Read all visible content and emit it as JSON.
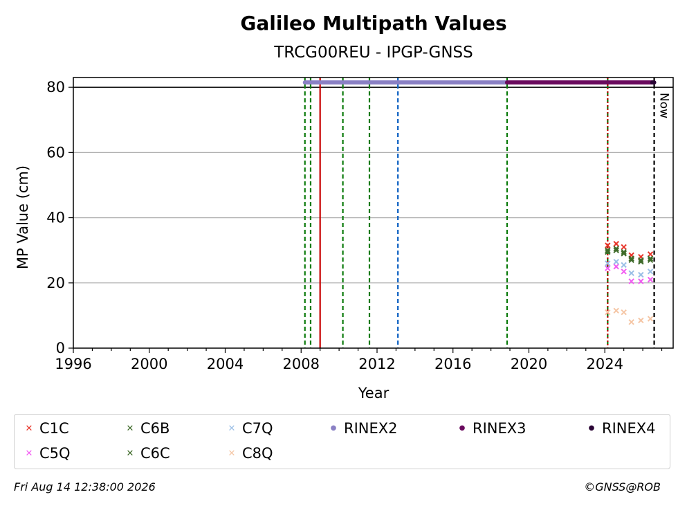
{
  "chart_data": {
    "type": "scatter",
    "title": "Galileo Multipath Values",
    "subtitle": "TRCG00REU - IPGP-GNSS",
    "xlabel": "Year",
    "ylabel": "MP Value (cm)",
    "xlim": [
      1996,
      2027.6
    ],
    "ylim": [
      0,
      83
    ],
    "x_ticks": [
      1996,
      2000,
      2004,
      2008,
      2012,
      2016,
      2020,
      2024
    ],
    "x_tick_labels": [
      "1996",
      "2000",
      "2004",
      "2008",
      "2012",
      "2016",
      "2020",
      "2024"
    ],
    "y_ticks": [
      0,
      20,
      40,
      60,
      80
    ],
    "y_tick_labels": [
      "0",
      "20",
      "40",
      "60",
      "80"
    ],
    "grid": "horizontal",
    "series": [
      {
        "name": "C1C",
        "marker": "x",
        "color": "#e8352a",
        "points": [
          [
            2024.15,
            31.5
          ],
          [
            2024.6,
            32.0
          ],
          [
            2025.0,
            31.0
          ],
          [
            2025.4,
            28.5
          ],
          [
            2025.9,
            28.0
          ],
          [
            2026.4,
            28.8
          ]
        ]
      },
      {
        "name": "C5Q",
        "marker": "x",
        "color": "#f25cf2",
        "points": [
          [
            2024.15,
            24.5
          ],
          [
            2024.6,
            25.0
          ],
          [
            2025.0,
            23.5
          ],
          [
            2025.4,
            20.5
          ],
          [
            2025.9,
            20.5
          ],
          [
            2026.4,
            21.0
          ]
        ]
      },
      {
        "name": "C6B",
        "marker": "x",
        "color": "#3f6b2a",
        "points": [
          [
            2024.15,
            30.0
          ],
          [
            2024.6,
            30.5
          ],
          [
            2025.0,
            29.5
          ],
          [
            2025.4,
            27.5
          ],
          [
            2025.9,
            27.0
          ],
          [
            2026.4,
            27.5
          ]
        ]
      },
      {
        "name": "C6C",
        "marker": "x",
        "color": "#3f6b2a",
        "points": [
          [
            2024.15,
            29.5
          ],
          [
            2024.6,
            30.0
          ],
          [
            2025.0,
            29.0
          ],
          [
            2025.4,
            27.0
          ],
          [
            2025.9,
            26.5
          ],
          [
            2026.4,
            27.0
          ]
        ]
      },
      {
        "name": "C7Q",
        "marker": "x",
        "color": "#9bbfe6",
        "points": [
          [
            2024.15,
            26.0
          ],
          [
            2024.6,
            26.5
          ],
          [
            2025.0,
            25.5
          ],
          [
            2025.4,
            23.0
          ],
          [
            2025.9,
            22.5
          ],
          [
            2026.4,
            23.5
          ]
        ]
      },
      {
        "name": "C8Q",
        "marker": "x",
        "color": "#f5c6a5",
        "points": [
          [
            2024.15,
            11.0
          ],
          [
            2024.6,
            11.5
          ],
          [
            2025.0,
            11.0
          ],
          [
            2025.4,
            8.0
          ],
          [
            2025.9,
            8.5
          ],
          [
            2026.4,
            9.0
          ]
        ]
      }
    ],
    "rinex_bars": [
      {
        "name": "RINEX2",
        "color": "#8a80c4",
        "start": 2008.2,
        "end": 2018.85,
        "y": 81.5
      },
      {
        "name": "RINEX3",
        "color": "#6a0a5e",
        "start": 2018.85,
        "end": 2026.5,
        "y": 81.5
      },
      {
        "name": "RINEX4",
        "color": "#2a0535",
        "start": 2026.5,
        "end": 2026.6,
        "y": 81.5
      }
    ],
    "hline": 80,
    "vlines": [
      {
        "x": 2008.2,
        "color": "#0a7a0a",
        "style": "dashed"
      },
      {
        "x": 2008.5,
        "color": "#0a7a0a",
        "style": "dashed"
      },
      {
        "x": 2009.0,
        "color": "#c80000",
        "style": "solid"
      },
      {
        "x": 2010.2,
        "color": "#0a7a0a",
        "style": "dashed"
      },
      {
        "x": 2011.6,
        "color": "#0a7a0a",
        "style": "dashed"
      },
      {
        "x": 2013.1,
        "color": "#0b5fc2",
        "style": "dashed"
      },
      {
        "x": 2018.85,
        "color": "#0a7a0a",
        "style": "dashed"
      },
      {
        "x": 2024.15,
        "color": "#0a7a0a",
        "style": "dashed"
      },
      {
        "x": 2024.15,
        "color": "#c80000",
        "style": "dotted"
      },
      {
        "x": 2026.6,
        "color": "#000000",
        "style": "dashed"
      }
    ],
    "now_label": "Now",
    "legend": [
      {
        "label": "C1C",
        "color": "#e8352a",
        "marker": "x"
      },
      {
        "label": "C6B",
        "color": "#3f6b2a",
        "marker": "x"
      },
      {
        "label": "C7Q",
        "color": "#9bbfe6",
        "marker": "x"
      },
      {
        "label": "RINEX2",
        "color": "#8a80c4",
        "marker": "dot"
      },
      {
        "label": "RINEX3",
        "color": "#6a0a5e",
        "marker": "dot"
      },
      {
        "label": "RINEX4",
        "color": "#2a0535",
        "marker": "dot"
      },
      {
        "label": "C5Q",
        "color": "#f25cf2",
        "marker": "x"
      },
      {
        "label": "C6C",
        "color": "#3f6b2a",
        "marker": "x"
      },
      {
        "label": "C8Q",
        "color": "#f5c6a5",
        "marker": "x"
      }
    ],
    "legend_placement": "below"
  },
  "footer": {
    "timestamp": "Fri Aug 14 12:38:00 2026",
    "credit": "©GNSS@ROB"
  }
}
